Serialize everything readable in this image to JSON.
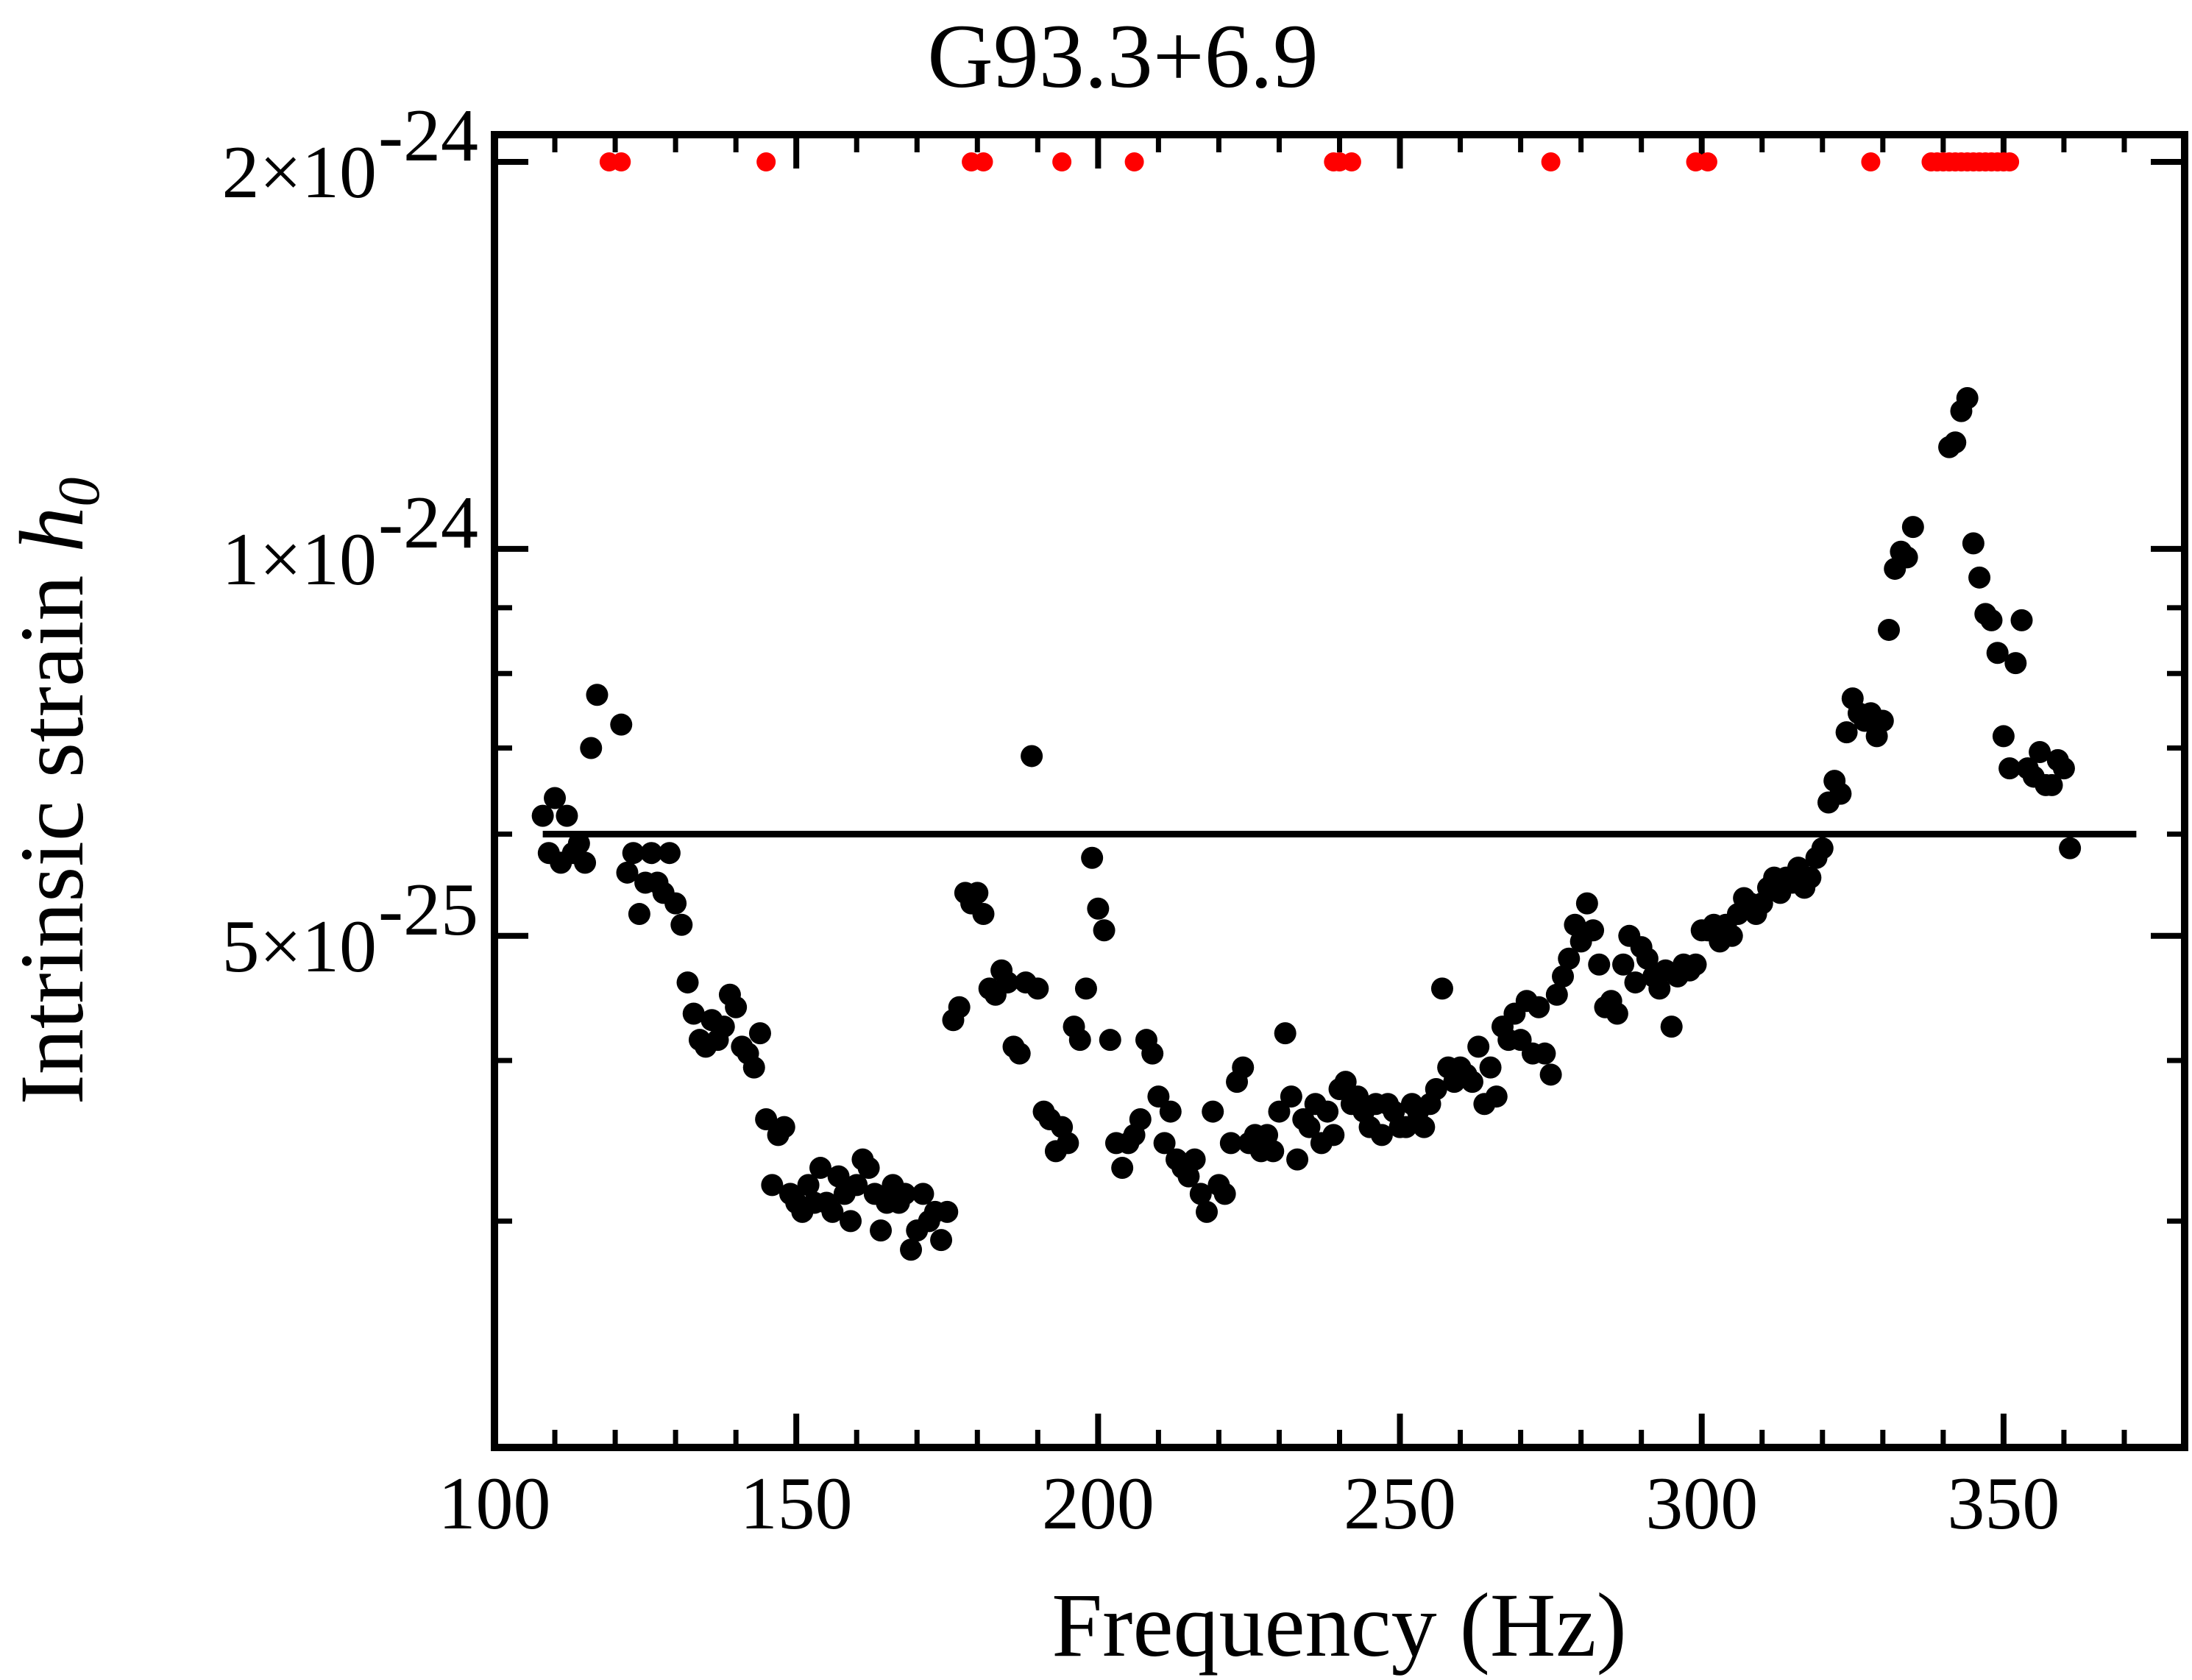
{
  "chart_data": {
    "type": "scatter",
    "title": "G93.3+6.9",
    "xlabel": "Frequency (Hz)",
    "ylabel": {
      "text": "Intrinsic strain ",
      "symbol": "h",
      "subscript": "0"
    },
    "x_range": [
      100,
      380
    ],
    "y_range": [
      2e-25,
      2.1e-24
    ],
    "y_scale": "log",
    "x_ticks": [
      {
        "value": 100,
        "label": "100"
      },
      {
        "value": 150,
        "label": "150"
      },
      {
        "value": 200,
        "label": "200"
      },
      {
        "value": 250,
        "label": "250"
      },
      {
        "value": 300,
        "label": "300"
      },
      {
        "value": 350,
        "label": "350"
      }
    ],
    "y_ticks": [
      {
        "value": 5e-25,
        "mantissa": "5",
        "exponent": "-25"
      },
      {
        "value": 1e-24,
        "mantissa": "1",
        "exponent": "-24"
      },
      {
        "value": 2e-24,
        "mantissa": "2",
        "exponent": "-24"
      }
    ],
    "y_minor_ticks": [
      3e-25,
      4e-25,
      6e-25,
      7e-25,
      8e-25,
      9e-25
    ],
    "x_minor_step": 10,
    "reference_line": {
      "value": 6e-25,
      "x_range": [
        108,
        372
      ]
    },
    "series": [
      {
        "color": "#000000",
        "points": [
          [
            108,
            6.2e-25
          ],
          [
            109,
            5.8e-25
          ],
          [
            110,
            6.4e-25
          ],
          [
            111,
            5.7e-25
          ],
          [
            112,
            6.2e-25
          ],
          [
            113,
            5.8e-25
          ],
          [
            114,
            5.9e-25
          ],
          [
            115,
            5.7e-25
          ],
          [
            116,
            7e-25
          ],
          [
            117,
            7.7e-25
          ],
          [
            121,
            7.3e-25
          ],
          [
            122,
            5.6e-25
          ],
          [
            123,
            5.8e-25
          ],
          [
            124,
            5.2e-25
          ],
          [
            125,
            5.5e-25
          ],
          [
            126,
            5.8e-25
          ],
          [
            127,
            5.5e-25
          ],
          [
            128,
            5.4e-25
          ],
          [
            129,
            5.8e-25
          ],
          [
            130,
            5.3e-25
          ],
          [
            131,
            5.1e-25
          ],
          [
            132,
            4.6e-25
          ],
          [
            133,
            4.35e-25
          ],
          [
            134,
            4.15e-25
          ],
          [
            135,
            4.1e-25
          ],
          [
            136,
            4.3e-25
          ],
          [
            137,
            4.15e-25
          ],
          [
            138,
            4.25e-25
          ],
          [
            139,
            4.5e-25
          ],
          [
            140,
            4.4e-25
          ],
          [
            141,
            4.1e-25
          ],
          [
            142,
            4.05e-25
          ],
          [
            143,
            3.95e-25
          ],
          [
            144,
            4.2e-25
          ],
          [
            145,
            3.6e-25
          ],
          [
            146,
            3.2e-25
          ],
          [
            147,
            3.5e-25
          ],
          [
            148,
            3.55e-25
          ],
          [
            149,
            3.15e-25
          ],
          [
            150,
            3.1e-25
          ],
          [
            151,
            3.05e-25
          ],
          [
            152,
            3.2e-25
          ],
          [
            153,
            3.1e-25
          ],
          [
            154,
            3.3e-25
          ],
          [
            155,
            3.1e-25
          ],
          [
            156,
            3.05e-25
          ],
          [
            157,
            3.25e-25
          ],
          [
            158,
            3.15e-25
          ],
          [
            159,
            3e-25
          ],
          [
            160,
            3.2e-25
          ],
          [
            161,
            3.35e-25
          ],
          [
            162,
            3.3e-25
          ],
          [
            163,
            3.15e-25
          ],
          [
            164,
            2.95e-25
          ],
          [
            165,
            3.1e-25
          ],
          [
            166,
            3.2e-25
          ],
          [
            167,
            3.1e-25
          ],
          [
            168,
            3.15e-25
          ],
          [
            169,
            2.85e-25
          ],
          [
            170,
            2.95e-25
          ],
          [
            171,
            3.15e-25
          ],
          [
            172,
            3e-25
          ],
          [
            173,
            3.05e-25
          ],
          [
            174,
            2.9e-25
          ],
          [
            175,
            3.05e-25
          ],
          [
            176,
            4.3e-25
          ],
          [
            177,
            4.4e-25
          ],
          [
            178,
            5.4e-25
          ],
          [
            179,
            5.3e-25
          ],
          [
            180,
            5.4e-25
          ],
          [
            181,
            5.2e-25
          ],
          [
            182,
            4.55e-25
          ],
          [
            183,
            4.5e-25
          ],
          [
            184,
            4.7e-25
          ],
          [
            185,
            4.6e-25
          ],
          [
            186,
            4.1e-25
          ],
          [
            187,
            4.05e-25
          ],
          [
            188,
            4.6e-25
          ],
          [
            189,
            6.9e-25
          ],
          [
            190,
            4.55e-25
          ],
          [
            191,
            3.65e-25
          ],
          [
            192,
            3.6e-25
          ],
          [
            193,
            3.4e-25
          ],
          [
            194,
            3.55e-25
          ],
          [
            195,
            3.45e-25
          ],
          [
            196,
            4.25e-25
          ],
          [
            197,
            4.15e-25
          ],
          [
            198,
            4.55e-25
          ],
          [
            199,
            5.75e-25
          ],
          [
            200,
            5.25e-25
          ],
          [
            201,
            5.05e-25
          ],
          [
            202,
            4.15e-25
          ],
          [
            203,
            3.45e-25
          ],
          [
            204,
            3.3e-25
          ],
          [
            205,
            3.45e-25
          ],
          [
            206,
            3.5e-25
          ],
          [
            207,
            3.6e-25
          ],
          [
            208,
            4.15e-25
          ],
          [
            209,
            4.05e-25
          ],
          [
            210,
            3.75e-25
          ],
          [
            211,
            3.45e-25
          ],
          [
            212,
            3.65e-25
          ],
          [
            213,
            3.35e-25
          ],
          [
            214,
            3.3e-25
          ],
          [
            215,
            3.25e-25
          ],
          [
            216,
            3.35e-25
          ],
          [
            217,
            3.15e-25
          ],
          [
            218,
            3.05e-25
          ],
          [
            219,
            3.65e-25
          ],
          [
            220,
            3.2e-25
          ],
          [
            221,
            3.15e-25
          ],
          [
            222,
            3.45e-25
          ],
          [
            223,
            3.85e-25
          ],
          [
            224,
            3.95e-25
          ],
          [
            225,
            3.45e-25
          ],
          [
            226,
            3.5e-25
          ],
          [
            227,
            3.4e-25
          ],
          [
            228,
            3.5e-25
          ],
          [
            229,
            3.4e-25
          ],
          [
            230,
            3.65e-25
          ],
          [
            231,
            4.2e-25
          ],
          [
            232,
            3.75e-25
          ],
          [
            233,
            3.35e-25
          ],
          [
            234,
            3.6e-25
          ],
          [
            235,
            3.55e-25
          ],
          [
            236,
            3.7e-25
          ],
          [
            237,
            3.45e-25
          ],
          [
            238,
            3.65e-25
          ],
          [
            239,
            3.5e-25
          ],
          [
            240,
            3.8e-25
          ],
          [
            241,
            3.85e-25
          ],
          [
            242,
            3.7e-25
          ],
          [
            243,
            3.75e-25
          ],
          [
            244,
            3.65e-25
          ],
          [
            245,
            3.55e-25
          ],
          [
            246,
            3.7e-25
          ],
          [
            247,
            3.5e-25
          ],
          [
            248,
            3.7e-25
          ],
          [
            249,
            3.65e-25
          ],
          [
            250,
            3.55e-25
          ],
          [
            251,
            3.55e-25
          ],
          [
            252,
            3.7e-25
          ],
          [
            253,
            3.65e-25
          ],
          [
            254,
            3.55e-25
          ],
          [
            255,
            3.7e-25
          ],
          [
            256,
            3.8e-25
          ],
          [
            257,
            4.55e-25
          ],
          [
            258,
            3.95e-25
          ],
          [
            259,
            3.85e-25
          ],
          [
            260,
            3.95e-25
          ],
          [
            261,
            3.9e-25
          ],
          [
            262,
            3.85e-25
          ],
          [
            263,
            4.1e-25
          ],
          [
            264,
            3.7e-25
          ],
          [
            265,
            3.95e-25
          ],
          [
            266,
            3.75e-25
          ],
          [
            267,
            4.25e-25
          ],
          [
            268,
            4.15e-25
          ],
          [
            269,
            4.35e-25
          ],
          [
            270,
            4.15e-25
          ],
          [
            271,
            4.45e-25
          ],
          [
            272,
            4.05e-25
          ],
          [
            273,
            4.4e-25
          ],
          [
            274,
            4.05e-25
          ],
          [
            275,
            3.9e-25
          ],
          [
            276,
            4.5e-25
          ],
          [
            277,
            4.65e-25
          ],
          [
            278,
            4.8e-25
          ],
          [
            279,
            5.1e-25
          ],
          [
            280,
            4.95e-25
          ],
          [
            281,
            5.3e-25
          ],
          [
            282,
            5.05e-25
          ],
          [
            283,
            4.75e-25
          ],
          [
            284,
            4.4e-25
          ],
          [
            285,
            4.45e-25
          ],
          [
            286,
            4.35e-25
          ],
          [
            287,
            4.75e-25
          ],
          [
            288,
            5e-25
          ],
          [
            289,
            4.6e-25
          ],
          [
            290,
            4.9e-25
          ],
          [
            291,
            4.8e-25
          ],
          [
            292,
            4.65e-25
          ],
          [
            293,
            4.55e-25
          ],
          [
            294,
            4.7e-25
          ],
          [
            295,
            4.25e-25
          ],
          [
            296,
            4.65e-25
          ],
          [
            297,
            4.75e-25
          ],
          [
            298,
            4.7e-25
          ],
          [
            299,
            4.75e-25
          ],
          [
            300,
            5.05e-25
          ],
          [
            301,
            5.05e-25
          ],
          [
            302,
            5.1e-25
          ],
          [
            303,
            4.95e-25
          ],
          [
            304,
            5.1e-25
          ],
          [
            305,
            5e-25
          ],
          [
            306,
            5.2e-25
          ],
          [
            307,
            5.35e-25
          ],
          [
            308,
            5.3e-25
          ],
          [
            309,
            5.2e-25
          ],
          [
            310,
            5.3e-25
          ],
          [
            311,
            5.45e-25
          ],
          [
            312,
            5.55e-25
          ],
          [
            313,
            5.4e-25
          ],
          [
            314,
            5.55e-25
          ],
          [
            315,
            5.5e-25
          ],
          [
            316,
            5.65e-25
          ],
          [
            317,
            5.45e-25
          ],
          [
            318,
            5.55e-25
          ],
          [
            319,
            5.75e-25
          ],
          [
            320,
            5.85e-25
          ],
          [
            321,
            6.35e-25
          ],
          [
            322,
            6.6e-25
          ],
          [
            323,
            6.45e-25
          ],
          [
            324,
            7.2e-25
          ],
          [
            325,
            7.65e-25
          ],
          [
            326,
            7.45e-25
          ],
          [
            327,
            7.35e-25
          ],
          [
            328,
            7.45e-25
          ],
          [
            329,
            7.15e-25
          ],
          [
            330,
            7.35e-25
          ],
          [
            331,
            8.65e-25
          ],
          [
            332,
            9.65e-25
          ],
          [
            333,
            9.95e-25
          ],
          [
            334,
            9.85e-25
          ],
          [
            335,
            1.04e-24
          ],
          [
            341,
            1.2e-24
          ],
          [
            342,
            1.21e-24
          ],
          [
            343,
            1.28e-24
          ],
          [
            344,
            1.31e-24
          ],
          [
            345,
            1.01e-24
          ],
          [
            346,
            9.5e-25
          ],
          [
            347,
            8.9e-25
          ],
          [
            348,
            8.8e-25
          ],
          [
            349,
            8.3e-25
          ],
          [
            350,
            7.15e-25
          ],
          [
            351,
            6.75e-25
          ],
          [
            352,
            8.15e-25
          ],
          [
            353,
            8.8e-25
          ],
          [
            354,
            6.75e-25
          ],
          [
            355,
            6.65e-25
          ],
          [
            356,
            6.95e-25
          ],
          [
            357,
            6.55e-25
          ],
          [
            358,
            6.55e-25
          ],
          [
            359,
            6.85e-25
          ],
          [
            360,
            6.75e-25
          ],
          [
            361,
            5.85e-25
          ]
        ]
      },
      {
        "color": "#ff0000",
        "points": [
          [
            119,
            2e-24
          ],
          [
            121,
            2e-24
          ],
          [
            145,
            2e-24
          ],
          [
            179,
            2e-24
          ],
          [
            181,
            2e-24
          ],
          [
            194,
            2e-24
          ],
          [
            206,
            2e-24
          ],
          [
            239,
            2e-24
          ],
          [
            240,
            2e-24
          ],
          [
            242,
            2e-24
          ],
          [
            275,
            2e-24
          ],
          [
            299,
            2e-24
          ],
          [
            301,
            2e-24
          ],
          [
            328,
            2e-24
          ],
          [
            338,
            2e-24
          ],
          [
            339,
            2e-24
          ],
          [
            340,
            2e-24
          ],
          [
            341,
            2e-24
          ],
          [
            342,
            2e-24
          ],
          [
            343,
            2e-24
          ],
          [
            344,
            2e-24
          ],
          [
            345,
            2e-24
          ],
          [
            346,
            2e-24
          ],
          [
            347,
            2e-24
          ],
          [
            348,
            2e-24
          ],
          [
            349,
            2e-24
          ],
          [
            350,
            2e-24
          ],
          [
            351,
            2e-24
          ]
        ]
      }
    ]
  }
}
